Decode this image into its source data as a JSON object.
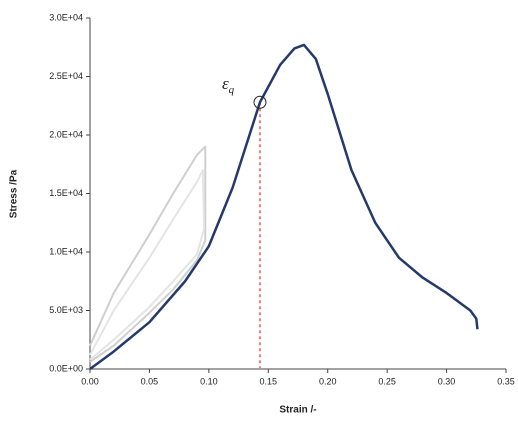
{
  "chart_data": {
    "type": "line",
    "xlabel": "Strain /-",
    "ylabel": "Stress /Pa",
    "xlim": [
      0,
      0.35
    ],
    "xticks": [
      {
        "value": 0,
        "label": "0.00"
      },
      {
        "value": 0.05,
        "label": "0.05"
      },
      {
        "value": 0.1,
        "label": "0.10"
      },
      {
        "value": 0.15,
        "label": "0.15"
      },
      {
        "value": 0.2,
        "label": "0.20"
      },
      {
        "value": 0.25,
        "label": "0.25"
      },
      {
        "value": 0.3,
        "label": "0.30"
      },
      {
        "value": 0.35,
        "label": "0.35"
      }
    ],
    "ylim": [
      0,
      30000
    ],
    "yticks": [
      {
        "value": 0,
        "label": "0.0E+00"
      },
      {
        "value": 5000,
        "label": "5.0E+03"
      },
      {
        "value": 10000,
        "label": "1.0E+04"
      },
      {
        "value": 15000,
        "label": "1.5E+04"
      },
      {
        "value": 20000,
        "label": "2.0E+04"
      },
      {
        "value": 25000,
        "label": "2.5E+04"
      },
      {
        "value": 30000,
        "label": "3.0E+04"
      }
    ],
    "series": [
      {
        "color": "#cfcfcf",
        "x": [
          0,
          0.02,
          0.05,
          0.07,
          0.09,
          0.095,
          0.097,
          0.097,
          0.09,
          0.07,
          0.05,
          0.02,
          0
        ],
        "values": [
          2000,
          6500,
          11500,
          15000,
          18300,
          18800,
          19000,
          11000,
          9300,
          6800,
          4800,
          2000,
          600
        ]
      },
      {
        "color": "#e4e4e4",
        "x": [
          0,
          0.02,
          0.05,
          0.07,
          0.09,
          0.095,
          0.096,
          0.09,
          0.07,
          0.05,
          0.02,
          0
        ],
        "values": [
          1200,
          5000,
          9500,
          12800,
          16000,
          17000,
          12000,
          9800,
          7500,
          5300,
          2500,
          800
        ]
      },
      {
        "color": "#243a6b",
        "x": [
          0,
          0.02,
          0.05,
          0.08,
          0.1,
          0.12,
          0.143,
          0.16,
          0.172,
          0.18,
          0.19,
          0.2,
          0.22,
          0.24,
          0.26,
          0.28,
          0.3,
          0.32,
          0.325,
          0.326
        ],
        "values": [
          0,
          1500,
          4000,
          7500,
          10500,
          15500,
          22800,
          26000,
          27400,
          27700,
          26500,
          23500,
          17000,
          12500,
          9500,
          7800,
          6500,
          5000,
          4300,
          3400
        ]
      }
    ],
    "annotation": {
      "text": "ε",
      "subscript": "q",
      "x": 0.143,
      "y": 22800,
      "color": "#f08080"
    }
  }
}
